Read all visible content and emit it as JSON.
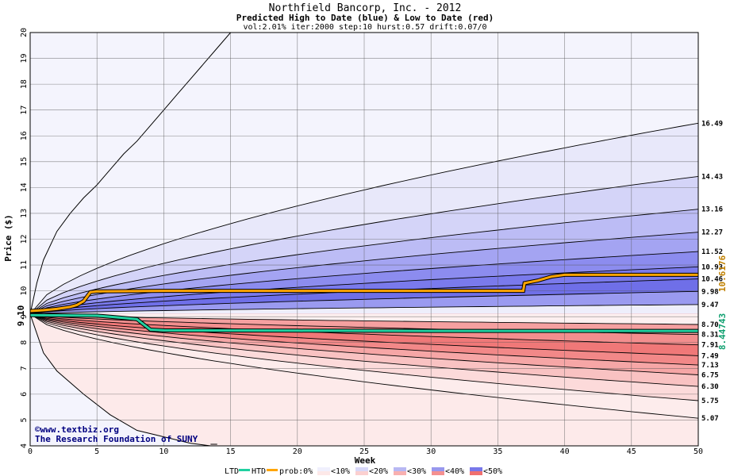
{
  "chart_data": {
    "type": "area",
    "title": "Northfield Bancorp, Inc. - 2012",
    "subtitle": "Predicted High to Date (blue) &  Low to Date (red)",
    "params": "vol:2.01% iter:2000 step:10 hurst:0.57 drift:0.07/0",
    "xlabel": "Week",
    "ylabel": "Price ($)",
    "xlim": [
      0,
      50
    ],
    "ylim": [
      4,
      20
    ],
    "x_ticks": [
      0,
      5,
      10,
      15,
      20,
      25,
      30,
      35,
      40,
      45,
      50
    ],
    "y_ticks": [
      4,
      5,
      6,
      7,
      8,
      9,
      10,
      11,
      12,
      13,
      14,
      15,
      16,
      17,
      18,
      19,
      20
    ],
    "grid": true,
    "start_price": "9.10",
    "htd_current": "10.6176",
    "ltd_current": "8.44743",
    "high_bands": [
      {
        "label": "16.49",
        "end": 16.49,
        "color": "#e8e8fa"
      },
      {
        "label": "14.43",
        "end": 14.43,
        "color": "#d4d4f8"
      },
      {
        "label": "13.16",
        "end": 13.16,
        "color": "#bcbcf5"
      },
      {
        "label": "12.27",
        "end": 12.27,
        "color": "#a4a4f2"
      },
      {
        "label": "11.52",
        "end": 11.52,
        "color": "#8c8cef"
      },
      {
        "label": "10.93",
        "end": 10.93,
        "color": "#7a7aec"
      },
      {
        "label": "10.46",
        "end": 10.46,
        "color": "#6f6fe8"
      },
      {
        "label": "9.98",
        "end": 9.98,
        "color": "#9a9af0"
      },
      {
        "label": "9.47",
        "end": 9.47,
        "color": "#eeeefb"
      }
    ],
    "low_bands": [
      {
        "label": "8.70",
        "end": 8.7,
        "color": "#fdf0f0"
      },
      {
        "label": "8.31",
        "end": 8.31,
        "color": "#f5a0a0"
      },
      {
        "label": "7.91",
        "end": 7.91,
        "color": "#f38e8e"
      },
      {
        "label": "7.49",
        "end": 7.49,
        "color": "#f07878"
      },
      {
        "label": "7.13",
        "end": 7.13,
        "color": "#f28888"
      },
      {
        "label": "6.75",
        "end": 6.75,
        "color": "#f6a6a6"
      },
      {
        "label": "6.30",
        "end": 6.3,
        "color": "#f9c2c2"
      },
      {
        "label": "5.75",
        "end": 5.75,
        "color": "#fcdada"
      },
      {
        "label": "5.07",
        "end": 5.07,
        "color": "#fdecec"
      }
    ],
    "envelope": {
      "high_x": [
        0,
        0.5,
        1,
        2,
        3,
        4,
        5,
        6,
        7,
        8,
        9,
        10,
        11,
        12,
        13,
        14,
        15
      ],
      "high_y": [
        9.1,
        10.3,
        11.2,
        12.3,
        13.0,
        13.6,
        14.1,
        14.7,
        15.3,
        15.8,
        16.4,
        17.0,
        17.6,
        18.2,
        18.8,
        19.4,
        20.0
      ],
      "low_x": [
        0,
        1,
        2,
        4,
        6,
        8,
        10,
        12,
        13.5
      ],
      "low_y": [
        9.1,
        7.6,
        6.9,
        6.0,
        5.2,
        4.6,
        4.35,
        4.1,
        4.0
      ]
    },
    "htd_series": {
      "name": "HTD",
      "color": "#ffa500",
      "x": [
        0,
        1,
        2,
        3,
        3.5,
        4,
        4.5,
        5,
        10,
        20,
        30,
        36.9,
        37,
        38,
        39,
        40,
        45,
        50
      ],
      "y": [
        9.22,
        9.25,
        9.3,
        9.38,
        9.45,
        9.6,
        9.95,
        9.98,
        10.0,
        10.0,
        10.0,
        10.0,
        10.3,
        10.4,
        10.55,
        10.62,
        10.62,
        10.62
      ]
    },
    "ltd_series": {
      "name": "LTD",
      "color": "#20d0a0",
      "x": [
        0,
        5,
        6,
        7,
        8,
        8.5,
        9,
        10,
        20,
        30,
        40,
        50
      ],
      "y": [
        9.06,
        9.04,
        9.0,
        8.95,
        8.9,
        8.7,
        8.5,
        8.47,
        8.46,
        8.45,
        8.45,
        8.45
      ]
    }
  },
  "legend": {
    "ltd_label": "LTD",
    "htd_label": "HTD",
    "prob_label": "prob:0%",
    "items": [
      "<10%",
      "<20%",
      "<30%",
      "<40%",
      "<50%"
    ],
    "colors": [
      "#f0f0fd",
      "#d8d8f8",
      "#b8b8f3",
      "#9898ee",
      "#7878ea"
    ],
    "red_colors": [
      "#fde8e8",
      "#fbd0d0",
      "#f8b0b0",
      "#f49090",
      "#f07070"
    ]
  },
  "credits": {
    "copyright": "©www.textbiz.org",
    "org": "The Research Foundation of SUNY"
  }
}
